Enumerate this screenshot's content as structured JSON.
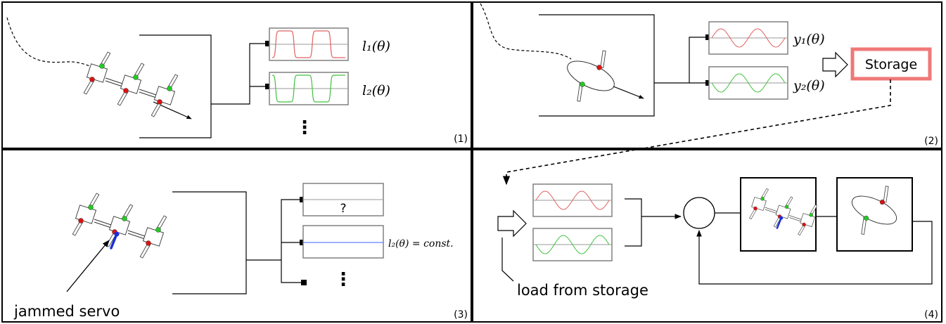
{
  "panels": {
    "p1": {
      "number": "(1)",
      "signal_labels": [
        "l₁(θ)",
        "l₂(θ)"
      ],
      "ellipsis": "⋮"
    },
    "p2": {
      "number": "(2)",
      "signal_labels": [
        "y₁(θ)",
        "y₂(θ)"
      ],
      "storage_label": "Storage"
    },
    "p3": {
      "number": "(3)",
      "unknown_mark": "?",
      "const_label": "l₂(θ) = const.",
      "jammed_label": "jammed servo",
      "ellipsis": "⋮"
    },
    "p4": {
      "number": "(4)",
      "load_label": "load from storage"
    }
  },
  "colors": {
    "signal_red": "#e06060",
    "signal_green": "#40c040",
    "constant_blue": "#6080ff",
    "storage_border": "#f07878",
    "jammed_servo": "#1a2fd6",
    "red_marker": "#dd1111",
    "green_marker": "#22cc22"
  }
}
